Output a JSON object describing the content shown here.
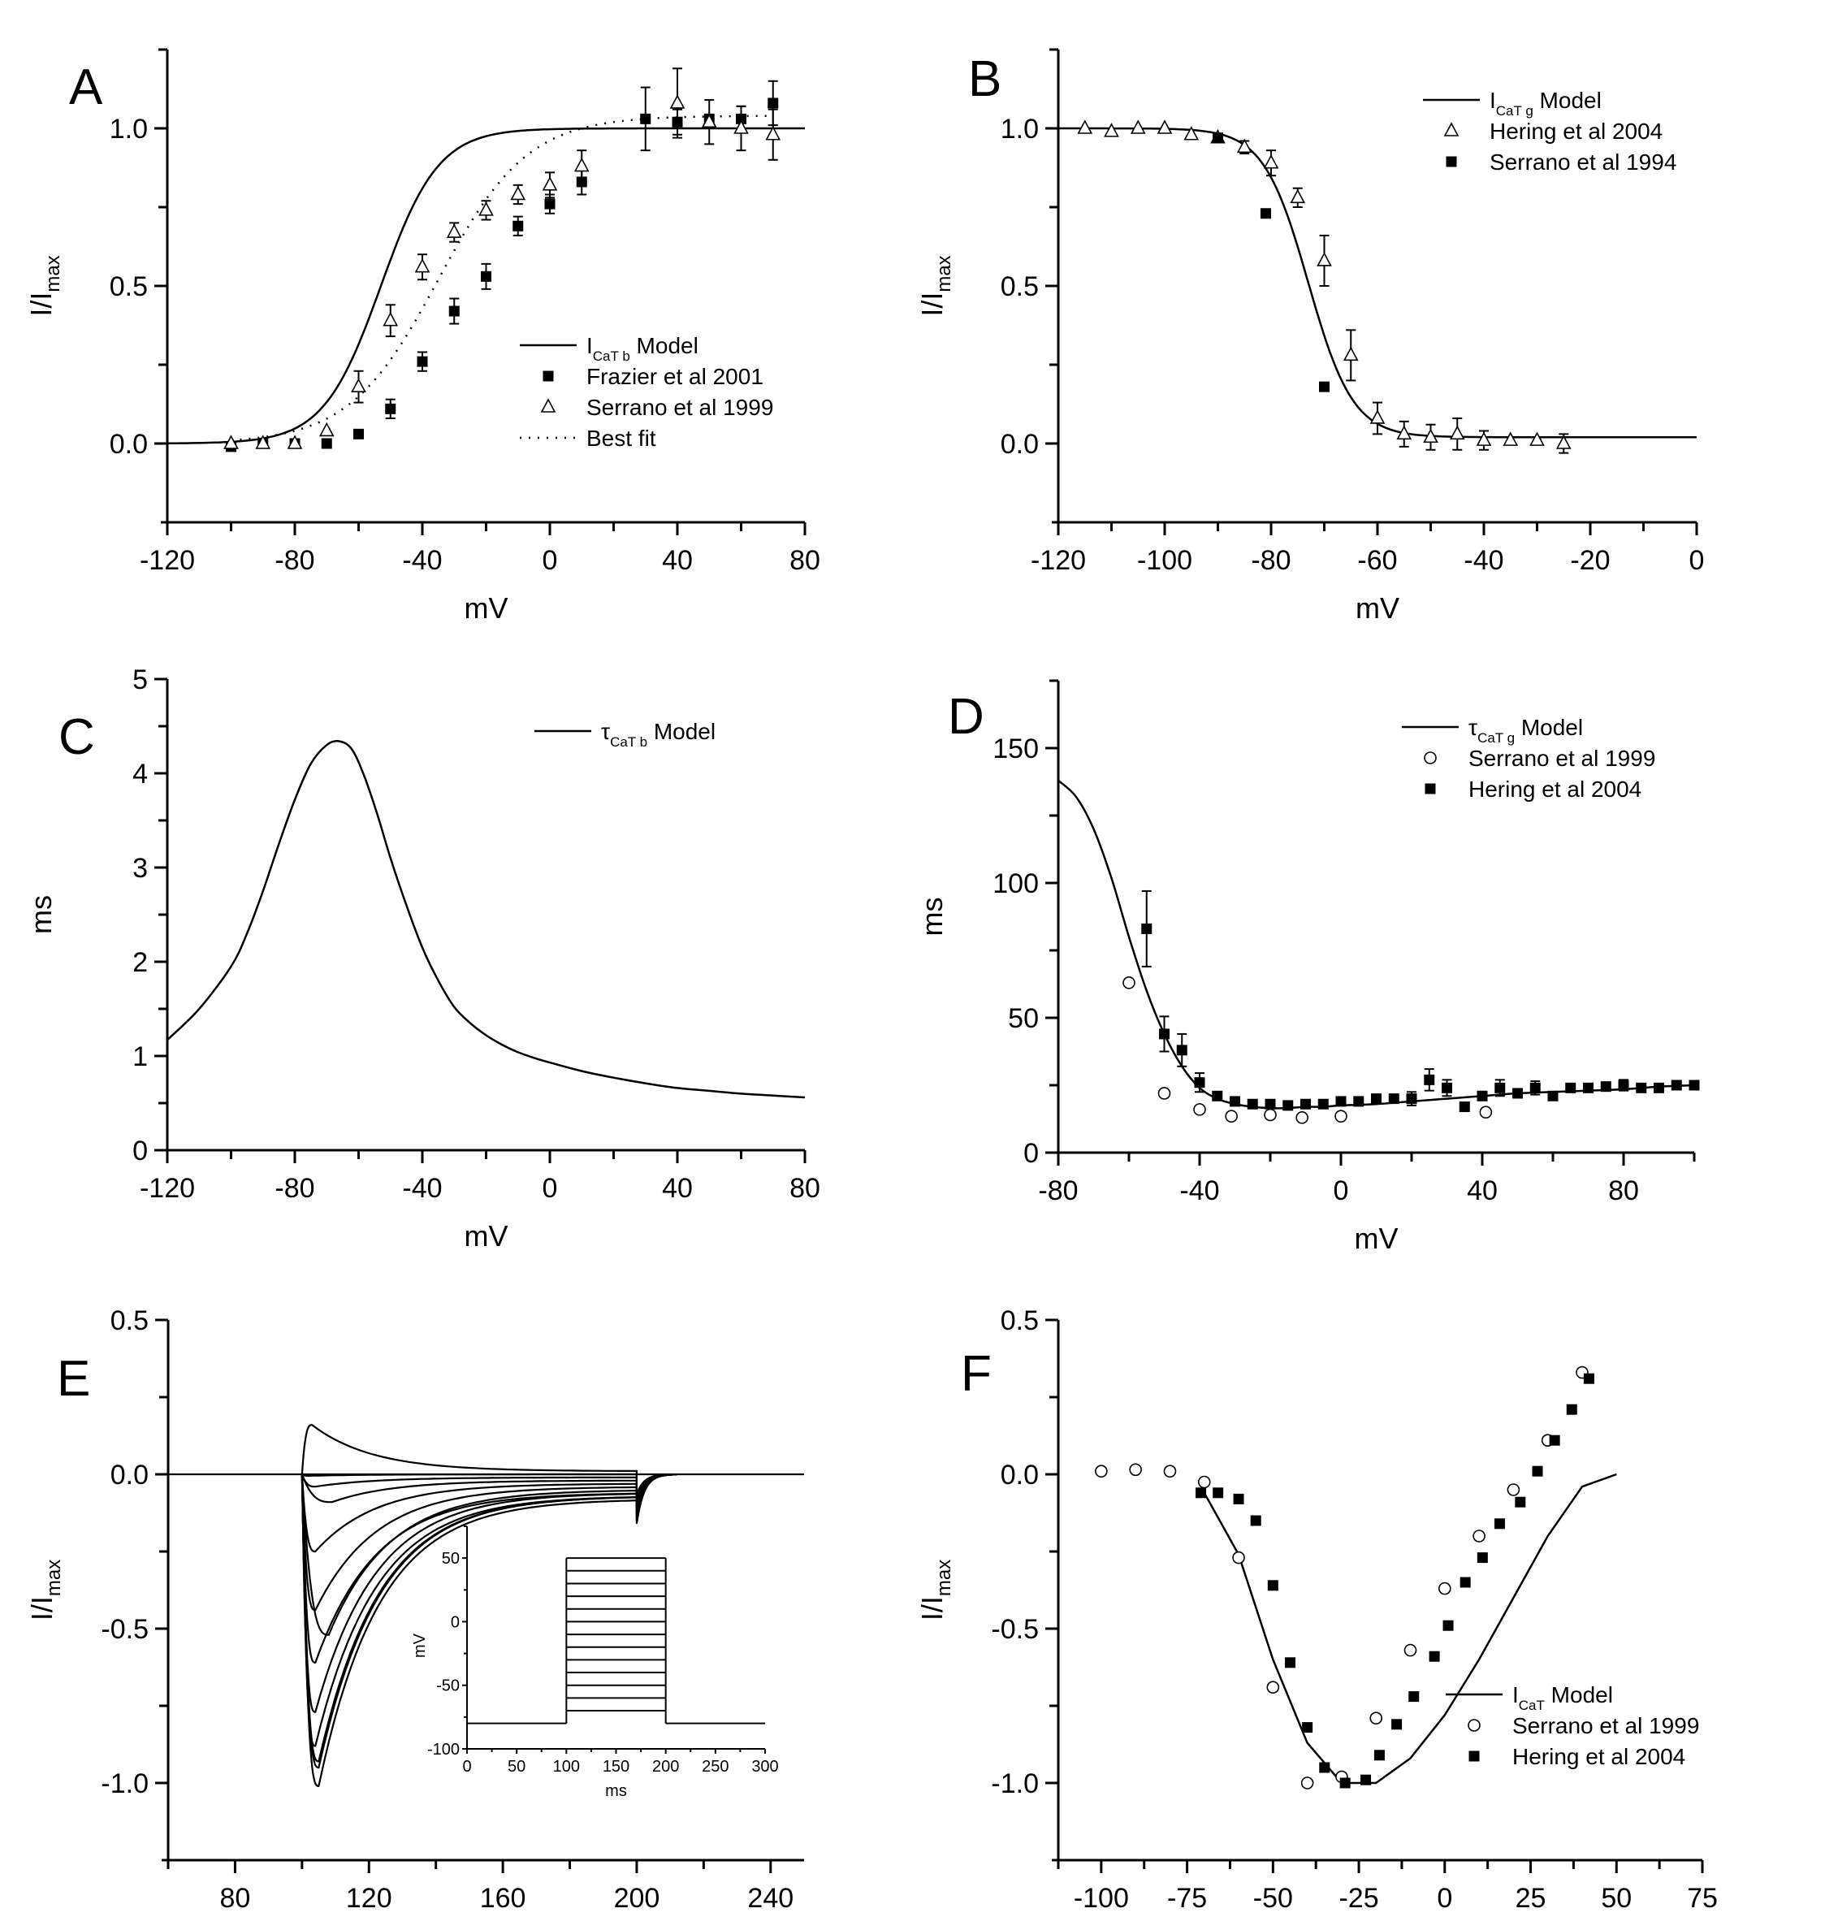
{
  "figure": {
    "panels": [
      "A",
      "B",
      "C",
      "D",
      "E",
      "F"
    ]
  },
  "chart_data": [
    {
      "panel": "A",
      "type": "scatter",
      "title": "",
      "xlabel": "mV",
      "ylabel": "I/I",
      "ylabel_sub": "max",
      "xlim": [
        -120,
        80
      ],
      "ylim": [
        -0.25,
        1.25
      ],
      "xticks": [
        -120,
        -80,
        -40,
        0,
        40,
        80
      ],
      "yticks": [
        0.0,
        0.5,
        1.0
      ],
      "ytick_labels": [
        "0.0",
        "0.5",
        "1.0"
      ],
      "grid": false,
      "legend_position": "center-right",
      "legend": [
        {
          "marker": "line",
          "label_main": "I",
          "label_sub": "CaT b",
          "label_tail": " Model"
        },
        {
          "marker": "square",
          "label_main": "Frazier et al 2001"
        },
        {
          "marker": "triangle",
          "label_main": "Serrano et al 1999"
        },
        {
          "marker": "dotted",
          "label_main": "Best fit"
        }
      ],
      "series": [
        {
          "name": "ICaT b Model",
          "kind": "curve",
          "style": "solid",
          "function": "boltzmann",
          "v_half": -53,
          "k": 9,
          "bottom": 0,
          "top": 1.0
        },
        {
          "name": "Best fit",
          "kind": "curve",
          "style": "dotted",
          "function": "boltzmann",
          "v_half": -35,
          "k": 14,
          "bottom": 0,
          "top": 1.04,
          "x_start": -100,
          "x_end": 70
        },
        {
          "name": "Frazier et al 2001",
          "kind": "points",
          "marker": "square",
          "x": [
            -100,
            -90,
            -80,
            -70,
            -60,
            -50,
            -40,
            -30,
            -20,
            -10,
            0,
            10,
            30,
            40,
            50,
            60,
            70
          ],
          "y": [
            -0.01,
            0.0,
            0.0,
            0.0,
            0.03,
            0.11,
            0.26,
            0.42,
            0.53,
            0.69,
            0.76,
            0.83,
            1.03,
            1.02,
            1.03,
            1.03,
            1.08
          ],
          "err": [
            0,
            0,
            0,
            0,
            0,
            0.03,
            0.03,
            0.04,
            0.04,
            0.03,
            0.03,
            0.04,
            0.1,
            0.04,
            0.0,
            0.04,
            0.07
          ]
        },
        {
          "name": "Serrano et al 1999",
          "kind": "points",
          "marker": "triangle",
          "x": [
            -100,
            -90,
            -80,
            -70,
            -60,
            -50,
            -40,
            -30,
            -20,
            -10,
            0,
            10,
            40,
            50,
            60,
            70
          ],
          "y": [
            0.0,
            0.0,
            0.0,
            0.04,
            0.18,
            0.39,
            0.56,
            0.67,
            0.74,
            0.79,
            0.82,
            0.88,
            1.08,
            1.02,
            1.0,
            0.98
          ],
          "err": [
            0,
            0,
            0,
            0,
            0.05,
            0.05,
            0.04,
            0.03,
            0.03,
            0.03,
            0.04,
            0.05,
            0.11,
            0.07,
            0.07,
            0.08
          ]
        }
      ]
    },
    {
      "panel": "B",
      "type": "scatter",
      "title": "",
      "xlabel": "mV",
      "ylabel": "I/I",
      "ylabel_sub": "max",
      "xlim": [
        -120,
        0
      ],
      "ylim": [
        -0.25,
        1.25
      ],
      "xticks": [
        -120,
        -100,
        -80,
        -60,
        -40,
        -20,
        0
      ],
      "yticks": [
        0.0,
        0.5,
        1.0
      ],
      "ytick_labels": [
        "0.0",
        "0.5",
        "1.0"
      ],
      "grid": false,
      "legend_position": "top-right",
      "legend": [
        {
          "marker": "line",
          "label_main": "I",
          "label_sub": "CaT g",
          "label_tail": " Model"
        },
        {
          "marker": "triangle",
          "label_main": "Hering et al 2004"
        },
        {
          "marker": "square",
          "label_main": "Serrano et al 1994"
        }
      ],
      "series": [
        {
          "name": "ICaT g Model",
          "kind": "curve",
          "style": "solid",
          "function": "boltzmann_inact",
          "v_half": -73,
          "k": 4.2,
          "bottom": 0.02,
          "top": 1.0
        },
        {
          "name": "Hering et al 2004",
          "kind": "points",
          "marker": "triangle",
          "x": [
            -115,
            -110,
            -105,
            -100,
            -95,
            -90,
            -85,
            -80,
            -75,
            -70,
            -65,
            -60,
            -55,
            -50,
            -45,
            -40,
            -35,
            -30,
            -25
          ],
          "y": [
            1.0,
            0.99,
            1.0,
            1.0,
            0.98,
            0.97,
            0.94,
            0.89,
            0.78,
            0.58,
            0.28,
            0.08,
            0.03,
            0.02,
            0.03,
            0.01,
            0.01,
            0.01,
            0.0
          ],
          "err": [
            0,
            0,
            0,
            0,
            0,
            0,
            0.02,
            0.04,
            0.03,
            0.08,
            0.08,
            0.05,
            0.04,
            0.04,
            0.05,
            0.03,
            0,
            0,
            0.03
          ]
        },
        {
          "name": "Serrano et al 1994",
          "kind": "points",
          "marker": "square",
          "x": [
            -90,
            -81,
            -70
          ],
          "y": [
            0.97,
            0.73,
            0.18
          ],
          "err": [
            0,
            0,
            0
          ]
        }
      ]
    },
    {
      "panel": "C",
      "type": "line",
      "title": "",
      "xlabel": "mV",
      "ylabel": "ms",
      "xlim": [
        -120,
        80
      ],
      "ylim": [
        0,
        5
      ],
      "xticks": [
        -120,
        -80,
        -40,
        0,
        40,
        80
      ],
      "yticks": [
        0,
        1,
        2,
        3,
        4,
        5
      ],
      "ytick_labels": [
        "0",
        "1",
        "2",
        "3",
        "4",
        "5"
      ],
      "grid": false,
      "legend_position": "top-right",
      "legend": [
        {
          "marker": "line",
          "label_main": "τ",
          "label_sub": "CaT b",
          "label_tail": " Model"
        }
      ],
      "series": [
        {
          "name": "tauCaT b Model",
          "kind": "sampled",
          "x": [
            -120,
            -110,
            -100,
            -95,
            -90,
            -85,
            -80,
            -75,
            -70,
            -66,
            -62,
            -58,
            -54,
            -50,
            -45,
            -40,
            -35,
            -30,
            -25,
            -20,
            -15,
            -10,
            -5,
            0,
            10,
            20,
            30,
            40,
            50,
            60,
            70,
            80
          ],
          "y": [
            1.17,
            1.5,
            1.95,
            2.3,
            2.75,
            3.25,
            3.72,
            4.1,
            4.3,
            4.34,
            4.25,
            3.95,
            3.55,
            3.1,
            2.6,
            2.15,
            1.8,
            1.52,
            1.35,
            1.22,
            1.12,
            1.04,
            0.98,
            0.93,
            0.84,
            0.77,
            0.71,
            0.66,
            0.63,
            0.6,
            0.58,
            0.56
          ]
        }
      ]
    },
    {
      "panel": "D",
      "type": "scatter",
      "title": "",
      "xlabel": "mV",
      "ylabel": "ms",
      "xlim": [
        -80,
        100
      ],
      "ylim": [
        0,
        175
      ],
      "xticks": [
        -80,
        -40,
        0,
        40,
        80
      ],
      "yticks": [
        0,
        50,
        100,
        150
      ],
      "ytick_labels": [
        "0",
        "50",
        "100",
        "150"
      ],
      "grid": false,
      "legend_position": "top-right",
      "legend": [
        {
          "marker": "line",
          "label_main": "τ",
          "label_sub": "CaT g",
          "label_tail": " Model"
        },
        {
          "marker": "circle",
          "label_main": "Serrano et al 1999"
        },
        {
          "marker": "square",
          "label_main": "Hering et al 2004"
        }
      ],
      "series": [
        {
          "name": "tauCaT g Model",
          "kind": "sampled",
          "x": [
            -80,
            -75,
            -70,
            -65,
            -60,
            -55,
            -50,
            -45,
            -40,
            -35,
            -30,
            -25,
            -20,
            -15,
            -10,
            -5,
            0,
            10,
            20,
            30,
            40,
            50,
            60,
            70,
            80,
            90,
            100
          ],
          "y": [
            138,
            132,
            120,
            102,
            80,
            60,
            44,
            32,
            24,
            20,
            18,
            17,
            16.5,
            16.5,
            17,
            17,
            17.5,
            18,
            19,
            20,
            21,
            22,
            22.5,
            23,
            23.5,
            24.5,
            25
          ]
        },
        {
          "name": "Serrano et al 1999",
          "kind": "points",
          "marker": "circle",
          "x": [
            -60,
            -50,
            -40,
            -31,
            -20,
            -11,
            0,
            41
          ],
          "y": [
            63,
            22,
            16,
            13.5,
            14,
            13,
            13.5,
            15
          ],
          "err": [
            0,
            0,
            0,
            0,
            0,
            0,
            0,
            0
          ]
        },
        {
          "name": "Hering et al 2004",
          "kind": "points",
          "marker": "square",
          "x": [
            -55,
            -50,
            -45,
            -40,
            -35,
            -30,
            -25,
            -20,
            -15,
            -10,
            -5,
            0,
            5,
            10,
            15,
            20,
            25,
            30,
            35,
            40,
            45,
            50,
            55,
            60,
            65,
            70,
            75,
            80,
            85,
            90,
            95,
            100
          ],
          "y": [
            83,
            44,
            38,
            26,
            21,
            19,
            18,
            18,
            17.5,
            18,
            18,
            19,
            19,
            20,
            20,
            20,
            27,
            24,
            17,
            21,
            24,
            22,
            24,
            21,
            24,
            24,
            24.5,
            25,
            24,
            24,
            25,
            25
          ],
          "err": [
            14,
            6.5,
            6,
            3.5,
            0,
            0,
            0,
            0,
            0,
            0,
            0,
            0,
            0,
            0,
            0,
            2.5,
            4,
            3,
            0,
            0,
            3,
            0,
            2.5,
            0,
            0,
            0,
            0,
            2,
            0,
            0,
            0,
            0
          ]
        }
      ]
    },
    {
      "panel": "E",
      "type": "line",
      "title": "",
      "xlabel": "ms",
      "ylabel": "I/I",
      "ylabel_sub": "max",
      "xlim": [
        60,
        250
      ],
      "ylim": [
        -1.25,
        0.5
      ],
      "xticks": [
        80,
        120,
        160,
        200,
        240
      ],
      "yticks": [
        -1.0,
        -0.5,
        0.0,
        0.5
      ],
      "ytick_labels": [
        "-1.0",
        "-0.5",
        "0.0",
        "0.5"
      ],
      "grid": false,
      "traces": {
        "step_start_ms": 100,
        "step_end_ms": 200,
        "peaks": [
          0.16,
          -0.005,
          -0.04,
          -0.09,
          -0.25,
          -0.44,
          -0.52,
          -0.61,
          -0.77,
          -0.88,
          -0.93,
          -0.95,
          -1.01
        ],
        "peak_times_ms": [
          103,
          102,
          104,
          109,
          104,
          104,
          108,
          104,
          104,
          104,
          105,
          105,
          105
        ],
        "end_values": [
          0.01,
          0.0,
          -0.01,
          -0.02,
          -0.03,
          -0.04,
          -0.05,
          -0.06,
          -0.06,
          -0.07,
          -0.07,
          -0.07,
          -0.08
        ],
        "tail_peak": -0.16
      },
      "inset": {
        "xlabel": "ms",
        "ylabel": "mV",
        "xlim": [
          0,
          300
        ],
        "ylim": [
          -100,
          75
        ],
        "xticks": [
          0,
          50,
          100,
          150,
          200,
          250,
          300
        ],
        "yticks": [
          -100,
          -50,
          0,
          50
        ],
        "holding_mV": -80,
        "step_start_ms": 100,
        "step_end_ms": 200,
        "step_levels_mV": [
          -70,
          -60,
          -50,
          -40,
          -30,
          -20,
          -10,
          0,
          10,
          20,
          30,
          40,
          50
        ]
      }
    },
    {
      "panel": "F",
      "type": "scatter",
      "title": "",
      "xlabel": "mV",
      "ylabel": "I/I",
      "ylabel_sub": "max",
      "xlim": [
        -112.5,
        75
      ],
      "ylim": [
        -1.25,
        0.5
      ],
      "xticks": [
        -100,
        -75,
        -50,
        -25,
        0,
        25,
        50,
        75
      ],
      "yticks": [
        -1.0,
        -0.5,
        0.0,
        0.5
      ],
      "ytick_labels": [
        "-1.0",
        "-0.5",
        "0.0",
        "0.5"
      ],
      "grid": false,
      "legend_position": "bottom-right",
      "legend": [
        {
          "marker": "line",
          "label_main": "I",
          "label_sub": "CaT",
          "label_tail": " Model"
        },
        {
          "marker": "circle",
          "label_main": "Serrano et al 1999"
        },
        {
          "marker": "square",
          "label_main": "Hering et al 2004"
        }
      ],
      "series": [
        {
          "name": "ICaT Model",
          "kind": "sampled",
          "x": [
            -70,
            -60,
            -50,
            -40,
            -30,
            -20,
            -10,
            0,
            10,
            20,
            30,
            40,
            50
          ],
          "y": [
            -0.06,
            -0.26,
            -0.6,
            -0.87,
            -1.0,
            -1.0,
            -0.92,
            -0.78,
            -0.6,
            -0.4,
            -0.2,
            -0.04,
            0.0
          ]
        },
        {
          "name": "Serrano et al 1999",
          "kind": "points",
          "marker": "circle",
          "x": [
            -100,
            -90,
            -80,
            -70,
            -60,
            -50,
            -40,
            -30,
            -20,
            -10,
            0,
            10,
            20,
            30,
            40
          ],
          "y": [
            0.01,
            0.015,
            0.01,
            -0.025,
            -0.27,
            -0.69,
            -1.0,
            -0.98,
            -0.79,
            -0.57,
            -0.37,
            -0.2,
            -0.05,
            0.11,
            0.33
          ],
          "err": [
            0,
            0,
            0,
            0,
            0,
            0,
            0,
            0,
            0,
            0,
            0,
            0,
            0,
            0,
            0
          ]
        },
        {
          "name": "Hering et al 2004",
          "kind": "points",
          "marker": "square",
          "x": [
            -71,
            -66,
            -60,
            -55,
            -50,
            -45,
            -40,
            -35,
            -29,
            -23,
            -19,
            -14,
            -9,
            -3,
            1,
            6,
            11,
            16,
            22,
            27,
            32,
            37,
            42
          ],
          "y": [
            -0.06,
            -0.06,
            -0.08,
            -0.15,
            -0.36,
            -0.61,
            -0.82,
            -0.95,
            -1.0,
            -0.99,
            -0.91,
            -0.81,
            -0.72,
            -0.59,
            -0.49,
            -0.35,
            -0.27,
            -0.16,
            -0.09,
            0.01,
            0.11,
            0.21,
            0.31
          ],
          "err": [
            0,
            0,
            0,
            0,
            0,
            0,
            0,
            0,
            0,
            0,
            0,
            0,
            0,
            0,
            0,
            0,
            0,
            0,
            0,
            0,
            0,
            0,
            0
          ]
        }
      ]
    }
  ]
}
